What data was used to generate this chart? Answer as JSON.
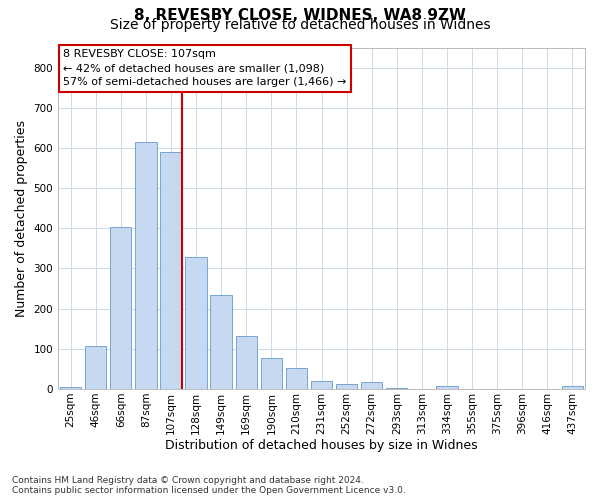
{
  "title_line1": "8, REVESBY CLOSE, WIDNES, WA8 9ZW",
  "title_line2": "Size of property relative to detached houses in Widnes",
  "xlabel": "Distribution of detached houses by size in Widnes",
  "ylabel": "Number of detached properties",
  "footnote": "Contains HM Land Registry data © Crown copyright and database right 2024.\nContains public sector information licensed under the Open Government Licence v3.0.",
  "categories": [
    "25sqm",
    "46sqm",
    "66sqm",
    "87sqm",
    "107sqm",
    "128sqm",
    "149sqm",
    "169sqm",
    "190sqm",
    "210sqm",
    "231sqm",
    "252sqm",
    "272sqm",
    "293sqm",
    "313sqm",
    "334sqm",
    "355sqm",
    "375sqm",
    "396sqm",
    "416sqm",
    "437sqm"
  ],
  "values": [
    5,
    107,
    403,
    614,
    590,
    328,
    235,
    133,
    77,
    53,
    20,
    13,
    17,
    3,
    0,
    8,
    0,
    0,
    0,
    0,
    8
  ],
  "bar_color": "#c6d9f0",
  "bar_edge_color": "#6699cc",
  "highlight_bar_index": 4,
  "highlight_line_color": "#cc0000",
  "highlight_box_text": "8 REVESBY CLOSE: 107sqm\n← 42% of detached houses are smaller (1,098)\n57% of semi-detached houses are larger (1,466) →",
  "highlight_box_color": "#cc0000",
  "ylim": [
    0,
    850
  ],
  "yticks": [
    0,
    100,
    200,
    300,
    400,
    500,
    600,
    700,
    800
  ],
  "grid_color": "#ccd9e8",
  "background_color": "#ffffff",
  "title_fontsize": 11,
  "subtitle_fontsize": 10,
  "tick_fontsize": 7.5,
  "label_fontsize": 9,
  "footnote_fontsize": 6.5
}
